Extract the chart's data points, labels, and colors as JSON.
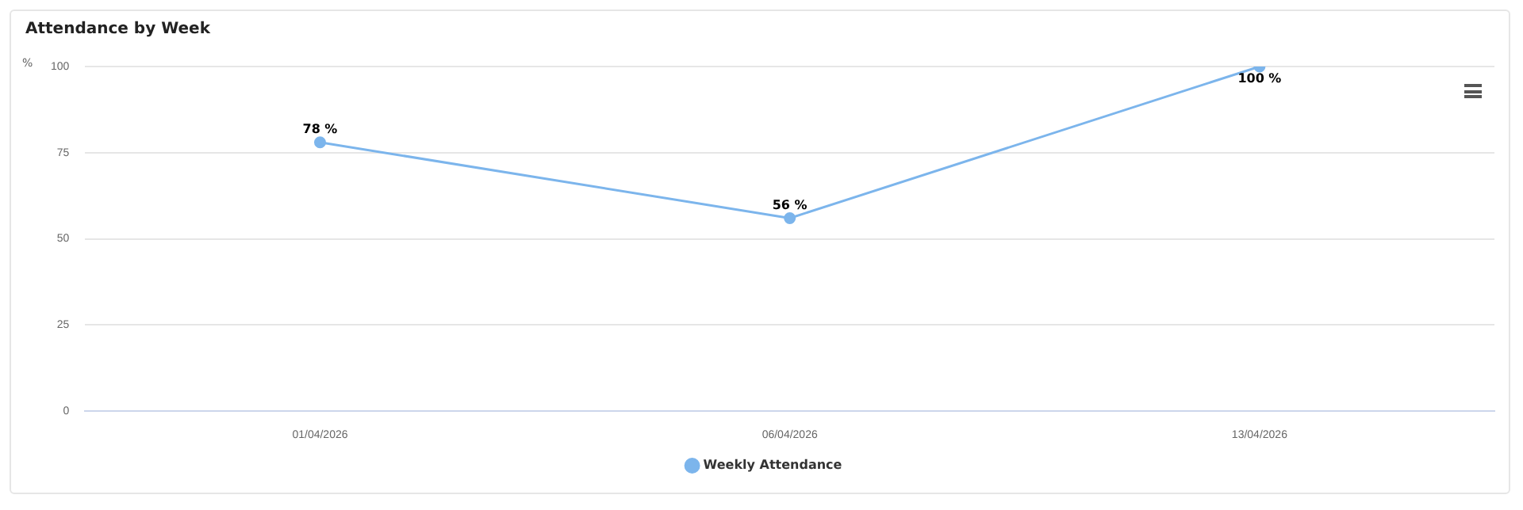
{
  "chart_data": {
    "type": "line",
    "title": "Attendance by Week",
    "ylabel": "%",
    "categories": [
      "01/04/2026",
      "06/04/2026",
      "13/04/2026"
    ],
    "series": [
      {
        "name": "Weekly Attendance",
        "color": "#7cb5ec",
        "values": [
          78,
          56,
          100
        ],
        "value_labels": [
          "78 %",
          "56 %",
          "100 %"
        ]
      }
    ],
    "ylim": [
      0,
      100
    ],
    "yticks": [
      0,
      25,
      50,
      75,
      100
    ],
    "grid": "y",
    "legend": "bottom",
    "marker": "circle",
    "line_style": "solid"
  }
}
